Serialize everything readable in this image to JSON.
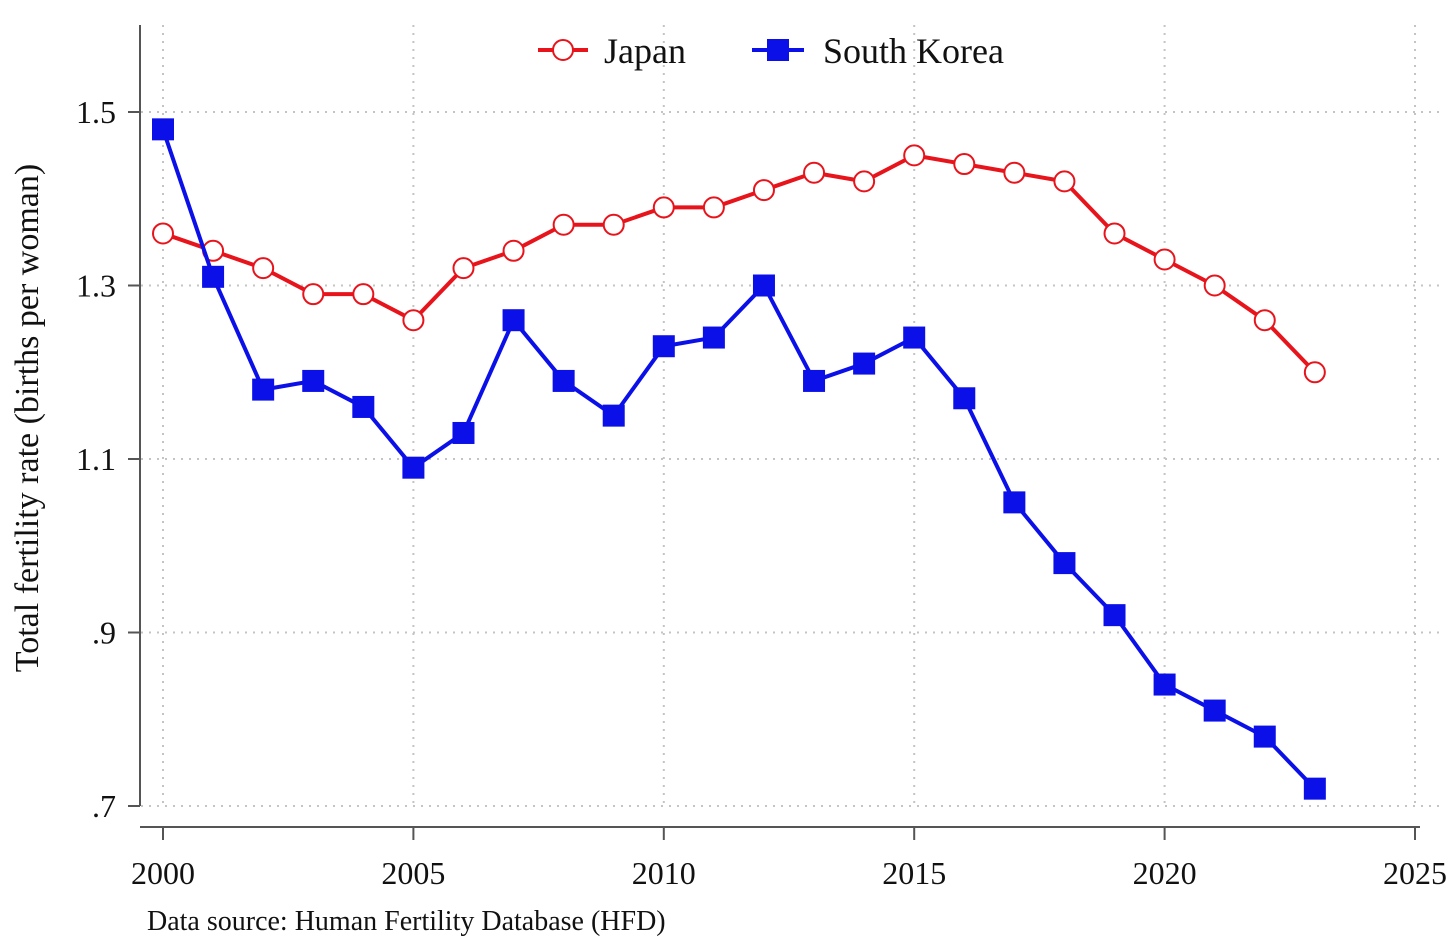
{
  "chart_data": {
    "type": "line",
    "title": "",
    "xlabel": "",
    "ylabel": "Total fertility rate (births per woman)",
    "xlim": [
      2000,
      2025
    ],
    "ylim": [
      0.7,
      1.5
    ],
    "x_ticks": [
      2000,
      2005,
      2010,
      2015,
      2020,
      2025
    ],
    "x_tick_labels": [
      "2000",
      "2005",
      "2010",
      "2015",
      "2020",
      "2025"
    ],
    "y_ticks": [
      0.7,
      0.9,
      1.1,
      1.3,
      1.5
    ],
    "y_tick_labels": [
      ".7",
      ".9",
      "1.1",
      "1.3",
      "1.5"
    ],
    "grid": true,
    "legend_position": "top-center",
    "note": "Data source: Human Fertility Database (HFD)",
    "x": [
      2000,
      2001,
      2002,
      2003,
      2004,
      2005,
      2006,
      2007,
      2008,
      2009,
      2010,
      2011,
      2012,
      2013,
      2014,
      2015,
      2016,
      2017,
      2018,
      2019,
      2020,
      2021,
      2022,
      2023
    ],
    "series": [
      {
        "name": "Japan",
        "color": "#e8141c",
        "marker": "hollow-circle",
        "values": [
          1.36,
          1.34,
          1.32,
          1.29,
          1.29,
          1.26,
          1.32,
          1.34,
          1.37,
          1.37,
          1.39,
          1.39,
          1.41,
          1.43,
          1.42,
          1.45,
          1.44,
          1.43,
          1.42,
          1.36,
          1.33,
          1.3,
          1.26,
          1.2
        ]
      },
      {
        "name": "South Korea",
        "color": "#0b10e8",
        "marker": "filled-square",
        "values": [
          1.48,
          1.31,
          1.18,
          1.19,
          1.16,
          1.09,
          1.13,
          1.26,
          1.19,
          1.15,
          1.23,
          1.24,
          1.3,
          1.19,
          1.21,
          1.24,
          1.17,
          1.05,
          0.98,
          0.92,
          0.84,
          0.81,
          0.78,
          0.72
        ]
      }
    ]
  }
}
